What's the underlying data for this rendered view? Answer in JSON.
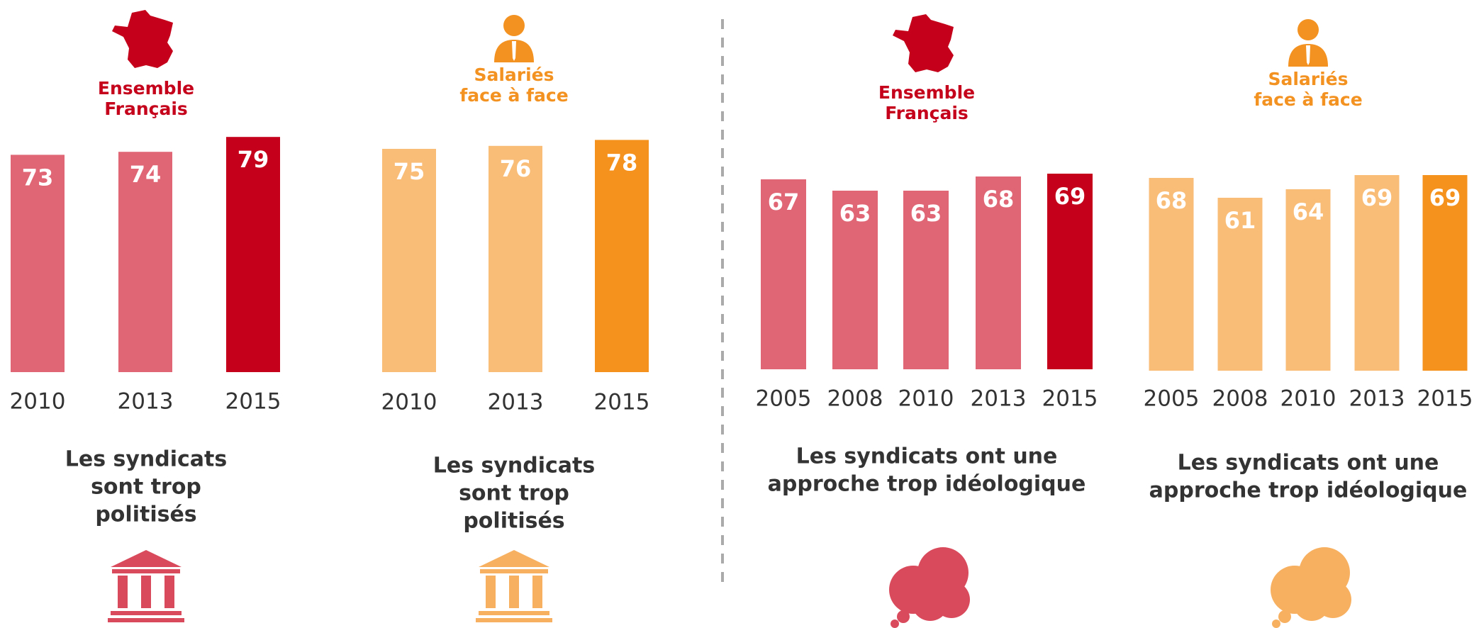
{
  "chart_data": [
    {
      "type": "bar",
      "group": [
        "Ensemble",
        "Français"
      ],
      "group_color": "#c4001a",
      "categories": [
        "2010",
        "2013",
        "2015"
      ],
      "values": [
        73,
        74,
        79
      ],
      "colors": [
        "#e06676",
        "#e06676",
        "#c4001a"
      ],
      "caption": [
        "Les syndicats",
        "sont trop",
        "politisés"
      ]
    },
    {
      "type": "bar",
      "group": [
        "Salariés",
        "face à face"
      ],
      "group_color": "#f39220",
      "categories": [
        "2010",
        "2013",
        "2015"
      ],
      "values": [
        75,
        76,
        78
      ],
      "colors": [
        "#f9bd78",
        "#f9bd78",
        "#f5921e"
      ],
      "caption": [
        "Les syndicats",
        "sont trop",
        "politisés"
      ]
    },
    {
      "type": "bar",
      "group": [
        "Ensemble",
        "Français"
      ],
      "group_color": "#c4001a",
      "categories": [
        "2005",
        "2008",
        "2010",
        "2013",
        "2015"
      ],
      "values": [
        67,
        63,
        63,
        68,
        69
      ],
      "colors": [
        "#e06676",
        "#e06676",
        "#e06676",
        "#e06676",
        "#c4001a"
      ],
      "caption": [
        "Les syndicats ont une",
        "approche trop idéologique"
      ]
    },
    {
      "type": "bar",
      "group": [
        "Salariés",
        "face à face"
      ],
      "group_color": "#f39220",
      "categories": [
        "2005",
        "2008",
        "2010",
        "2013",
        "2015"
      ],
      "values": [
        68,
        61,
        64,
        69,
        69
      ],
      "colors": [
        "#f9bd78",
        "#f9bd78",
        "#f9bd78",
        "#f9bd78",
        "#f5921e"
      ],
      "caption": [
        "Les syndicats ont une",
        "approche trop idéologique"
      ]
    }
  ]
}
